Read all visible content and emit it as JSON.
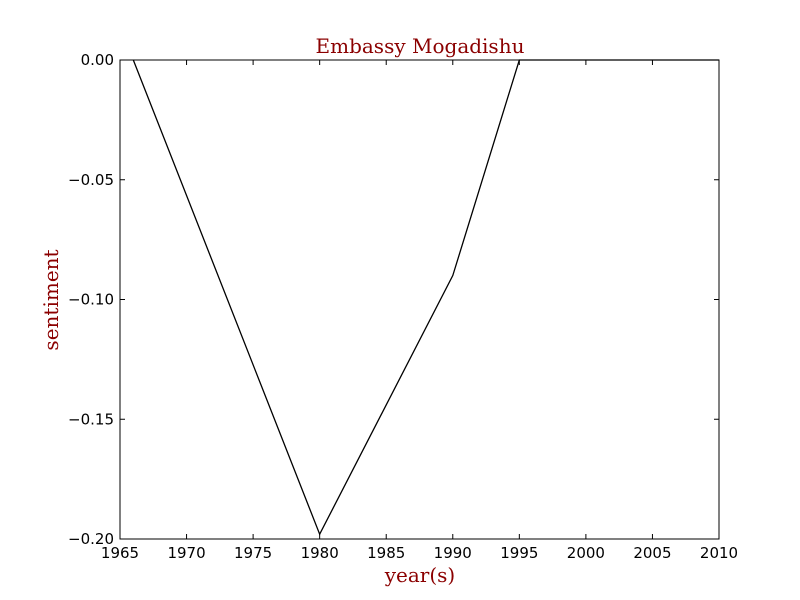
{
  "colors": {
    "title": "#8b0000",
    "axis_labels": "#8b0000",
    "line": "#000000",
    "frame": "#000000",
    "background": "#ffffff"
  },
  "chart_data": {
    "type": "line",
    "title": "Embassy Mogadishu",
    "xlabel": "year(s)",
    "ylabel": "sentiment",
    "xlim": [
      1965,
      2010
    ],
    "ylim": [
      -0.2,
      0.0
    ],
    "xticks": [
      1965,
      1970,
      1975,
      1980,
      1985,
      1990,
      1995,
      2000,
      2005,
      2010
    ],
    "xtick_labels": [
      "1965",
      "1970",
      "1975",
      "1980",
      "1985",
      "1990",
      "1995",
      "2000",
      "2005",
      "2010"
    ],
    "yticks": [
      0.0,
      -0.05,
      -0.1,
      -0.15,
      -0.2
    ],
    "ytick_labels": [
      "0.00",
      "−0.05",
      "−0.10",
      "−0.15",
      "−0.20"
    ],
    "grid": false,
    "series": [
      {
        "x": [
          1966,
          1980,
          1990,
          1995,
          2010
        ],
        "y": [
          0.0,
          -0.198,
          -0.09,
          0.0,
          0.0
        ]
      }
    ]
  }
}
